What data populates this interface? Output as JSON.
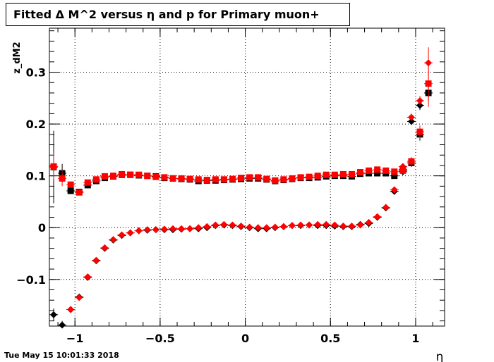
{
  "title": "Fitted Δ M^2 versus η and p for Primary muon+",
  "timestamp": "Tue May 15 10:01:33 2018",
  "chart_data": {
    "type": "scatter",
    "title": "Fitted Δ M^2 versus η and p for Primary muon+",
    "xlabel": "η",
    "ylabel": "z_dM2",
    "xlim": [
      -1.15,
      1.17
    ],
    "ylim": [
      -0.19,
      0.385
    ],
    "grid": true,
    "x_ticks": [
      {
        "value": -1,
        "label": "−1"
      },
      {
        "value": -0.5,
        "label": "−0.5"
      },
      {
        "value": 0,
        "label": "0"
      },
      {
        "value": 0.5,
        "label": "0.5"
      },
      {
        "value": 1,
        "label": "1"
      }
    ],
    "y_ticks": [
      {
        "value": -0.1,
        "label": "−0.1"
      },
      {
        "value": 0,
        "label": "0"
      },
      {
        "value": 0.1,
        "label": "0.1"
      },
      {
        "value": 0.2,
        "label": "0.2"
      },
      {
        "value": 0.3,
        "label": "0.3"
      }
    ],
    "x": [
      -1.125,
      -1.075,
      -1.025,
      -0.975,
      -0.925,
      -0.875,
      -0.825,
      -0.775,
      -0.725,
      -0.675,
      -0.625,
      -0.575,
      -0.525,
      -0.475,
      -0.425,
      -0.375,
      -0.325,
      -0.275,
      -0.225,
      -0.175,
      -0.125,
      -0.075,
      -0.025,
      0.025,
      0.075,
      0.125,
      0.175,
      0.225,
      0.275,
      0.325,
      0.375,
      0.425,
      0.475,
      0.525,
      0.575,
      0.625,
      0.675,
      0.725,
      0.775,
      0.825,
      0.875,
      0.925,
      0.975,
      1.025,
      1.075
    ],
    "series": [
      {
        "marker": "square",
        "color": "#000000",
        "values": [
          0.117,
          0.105,
          0.071,
          0.069,
          0.082,
          0.09,
          0.096,
          0.099,
          0.102,
          0.102,
          0.101,
          0.1,
          0.099,
          0.096,
          0.095,
          0.094,
          0.093,
          0.09,
          0.091,
          0.091,
          0.092,
          0.093,
          0.094,
          0.095,
          0.095,
          0.093,
          0.09,
          0.092,
          0.094,
          0.096,
          0.096,
          0.097,
          0.099,
          0.1,
          0.1,
          0.099,
          0.104,
          0.105,
          0.105,
          0.105,
          0.1,
          0.112,
          0.125,
          0.18,
          0.26
        ],
        "errors": [
          0.07,
          0.018,
          0.004,
          0.004,
          0.003,
          0.003,
          0.003,
          0.003,
          0.002,
          0.002,
          0.002,
          0.002,
          0.002,
          0.002,
          0.002,
          0.002,
          0.002,
          0.002,
          0.002,
          0.002,
          0.002,
          0.002,
          0.002,
          0.002,
          0.002,
          0.002,
          0.002,
          0.002,
          0.002,
          0.002,
          0.002,
          0.002,
          0.002,
          0.002,
          0.002,
          0.002,
          0.002,
          0.003,
          0.003,
          0.003,
          0.004,
          0.006,
          0.008,
          0.012,
          0.015
        ]
      },
      {
        "marker": "diamond",
        "color": "#000000",
        "values": [
          -0.168,
          -0.188,
          -0.158,
          -0.134,
          -0.096,
          -0.064,
          -0.04,
          -0.024,
          -0.015,
          -0.01,
          -0.006,
          -0.005,
          -0.004,
          -0.004,
          -0.004,
          -0.003,
          -0.002,
          -0.002,
          0.0,
          0.004,
          0.005,
          0.004,
          0.002,
          0.0,
          -0.002,
          -0.002,
          0.0,
          0.002,
          0.004,
          0.004,
          0.005,
          0.004,
          0.004,
          0.003,
          0.002,
          0.002,
          0.006,
          0.008,
          0.02,
          0.038,
          0.07,
          0.108,
          0.205,
          0.236,
          0.26
        ],
        "errors": [
          0.012,
          0.008,
          0.005,
          0.004,
          0.003,
          0.003,
          0.003,
          0.002,
          0.002,
          0.002,
          0.002,
          0.002,
          0.002,
          0.002,
          0.002,
          0.002,
          0.002,
          0.002,
          0.002,
          0.002,
          0.002,
          0.002,
          0.002,
          0.002,
          0.002,
          0.002,
          0.002,
          0.002,
          0.002,
          0.002,
          0.002,
          0.002,
          0.002,
          0.002,
          0.002,
          0.002,
          0.002,
          0.002,
          0.003,
          0.003,
          0.004,
          0.005,
          0.007,
          0.009,
          0.012
        ]
      },
      {
        "marker": "square",
        "color": "#ff0000",
        "values": [
          0.118,
          0.095,
          0.083,
          0.068,
          0.087,
          0.093,
          0.099,
          0.1,
          0.103,
          0.102,
          0.102,
          0.1,
          0.098,
          0.097,
          0.095,
          0.095,
          0.094,
          0.093,
          0.092,
          0.093,
          0.093,
          0.094,
          0.096,
          0.097,
          0.097,
          0.094,
          0.091,
          0.093,
          0.095,
          0.097,
          0.098,
          0.1,
          0.102,
          0.102,
          0.103,
          0.103,
          0.107,
          0.11,
          0.112,
          0.11,
          0.108,
          0.11,
          0.128,
          0.185,
          0.278
        ],
        "errors": [
          0.025,
          0.015,
          0.004,
          0.004,
          0.003,
          0.003,
          0.003,
          0.003,
          0.002,
          0.002,
          0.002,
          0.002,
          0.002,
          0.002,
          0.002,
          0.002,
          0.002,
          0.002,
          0.002,
          0.002,
          0.002,
          0.002,
          0.002,
          0.002,
          0.002,
          0.002,
          0.002,
          0.002,
          0.002,
          0.002,
          0.002,
          0.002,
          0.002,
          0.002,
          0.002,
          0.002,
          0.002,
          0.003,
          0.003,
          0.003,
          0.004,
          0.006,
          0.008,
          0.012,
          0.045
        ]
      },
      {
        "marker": "diamond",
        "color": "#ff0000",
        "values": [
          null,
          null,
          -0.158,
          -0.135,
          -0.095,
          -0.063,
          -0.039,
          -0.023,
          -0.014,
          -0.01,
          -0.006,
          -0.004,
          -0.004,
          -0.003,
          -0.002,
          -0.002,
          -0.002,
          0.0,
          0.002,
          0.005,
          0.006,
          0.005,
          0.003,
          0.001,
          0.0,
          0.0,
          0.001,
          0.002,
          0.004,
          0.005,
          0.005,
          0.006,
          0.006,
          0.005,
          0.003,
          0.003,
          0.005,
          0.01,
          0.021,
          0.039,
          0.073,
          0.118,
          0.213,
          0.245,
          0.318
        ],
        "errors": [
          null,
          null,
          0.005,
          0.004,
          0.003,
          0.003,
          0.003,
          0.002,
          0.002,
          0.002,
          0.002,
          0.002,
          0.002,
          0.002,
          0.002,
          0.002,
          0.002,
          0.002,
          0.002,
          0.002,
          0.002,
          0.002,
          0.002,
          0.002,
          0.002,
          0.002,
          0.002,
          0.002,
          0.002,
          0.002,
          0.002,
          0.002,
          0.002,
          0.002,
          0.002,
          0.002,
          0.002,
          0.002,
          0.003,
          0.003,
          0.004,
          0.005,
          0.007,
          0.009,
          0.03
        ]
      }
    ]
  }
}
